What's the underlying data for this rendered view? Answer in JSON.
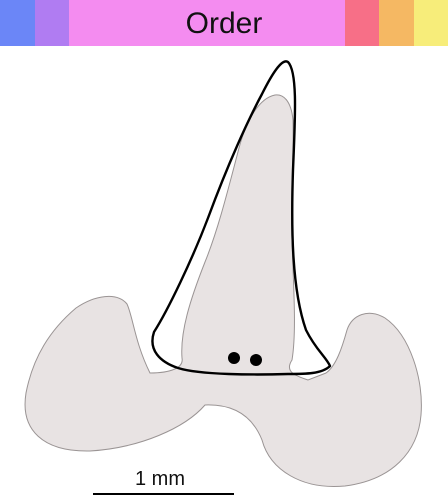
{
  "header": {
    "title": "Order",
    "swatches": [
      {
        "id": "blue",
        "color": "#6b86f7"
      },
      {
        "id": "violet",
        "color": "#b07cf2"
      },
      {
        "id": "magenta",
        "color": "#f48cf0"
      },
      {
        "id": "coral",
        "color": "#f76f87"
      },
      {
        "id": "orange",
        "color": "#f5b863"
      },
      {
        "id": "yellow",
        "color": "#f7ed7a"
      }
    ]
  },
  "scale_bar": {
    "label": "1 mm"
  },
  "colors": {
    "body_fill": "#e8e3e3",
    "body_stroke": "#9a9494",
    "outline_stroke": "#000000",
    "spot_fill": "#000000"
  }
}
